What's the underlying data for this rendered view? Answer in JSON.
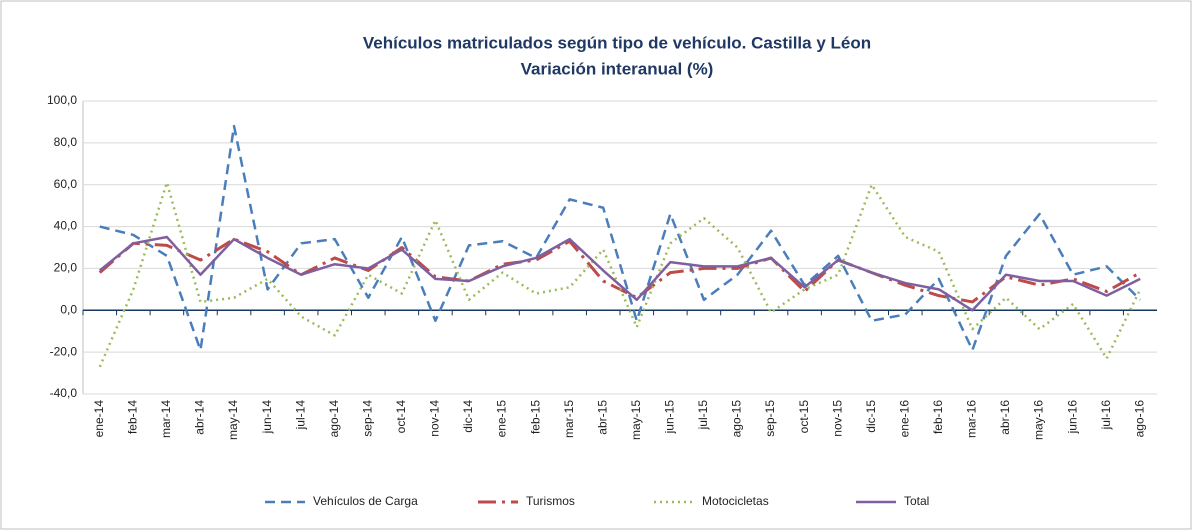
{
  "chart_data": {
    "type": "line",
    "title": "Vehículos matriculados según tipo de vehículo. Castilla y Léon",
    "subtitle": "Variación interanual (%)",
    "categories": [
      "ene-14",
      "feb-14",
      "mar-14",
      "abr-14",
      "may-14",
      "jun-14",
      "jul-14",
      "ago-14",
      "sep-14",
      "oct-14",
      "nov-14",
      "dic-14",
      "ene-15",
      "feb-15",
      "mar-15",
      "abr-15",
      "may-15",
      "jun-15",
      "jul-15",
      "ago-15",
      "sep-15",
      "oct-15",
      "nov-15",
      "dic-15",
      "ene-16",
      "feb-16",
      "mar-16",
      "abr-16",
      "may-16",
      "jun-16",
      "jul-16",
      "ago-16"
    ],
    "series": [
      {
        "name": "Vehículos de Carga",
        "color": "#4a7ebb",
        "dash": "dashed",
        "values": [
          40,
          36,
          26,
          -19,
          88,
          10,
          32,
          34,
          6,
          35,
          -5,
          31,
          33,
          25,
          53,
          49,
          -5,
          46,
          5,
          17,
          38,
          12,
          26,
          -5,
          -2,
          15,
          -19,
          26,
          46,
          17,
          21,
          5
        ]
      },
      {
        "name": "Turismos",
        "color": "#be4b48",
        "dash": "dashdot",
        "values": [
          18,
          32,
          31,
          24,
          34,
          28,
          17,
          25,
          19,
          30,
          16,
          14,
          22,
          24,
          33,
          14,
          6,
          18,
          20,
          20,
          25,
          9,
          24,
          18,
          12,
          7,
          4,
          16,
          12,
          15,
          9,
          18
        ]
      },
      {
        "name": "Motocicletas",
        "color": "#9bbb59",
        "dash": "dotted",
        "values": [
          -27,
          10,
          61,
          4,
          6,
          15,
          -3,
          -12,
          17,
          8,
          43,
          5,
          18,
          8,
          11,
          29,
          -8,
          32,
          44,
          30,
          -1,
          10,
          17,
          60,
          35,
          28,
          -9,
          6,
          -9,
          3,
          -23,
          10
        ]
      },
      {
        "name": "Total",
        "color": "#7f5fa0",
        "dash": "solid",
        "values": [
          19,
          32,
          35,
          17,
          34,
          25,
          17,
          22,
          20,
          29,
          15,
          14,
          21,
          25,
          34,
          19,
          5,
          23,
          21,
          21,
          25,
          11,
          24,
          18,
          13,
          10,
          0,
          17,
          14,
          14,
          7,
          15
        ]
      }
    ],
    "ylim": [
      -40,
      100
    ],
    "yticks": [
      {
        "value": -40,
        "label": "-40,0"
      },
      {
        "value": -20,
        "label": "-20,0"
      },
      {
        "value": 0,
        "label": "0,0"
      },
      {
        "value": 20,
        "label": "20,0"
      },
      {
        "value": 40,
        "label": "40,0"
      },
      {
        "value": 60,
        "label": "60,0"
      },
      {
        "value": 80,
        "label": "80,0"
      },
      {
        "value": 100,
        "label": "100,0"
      }
    ],
    "grid": true,
    "legend": "bottom"
  }
}
